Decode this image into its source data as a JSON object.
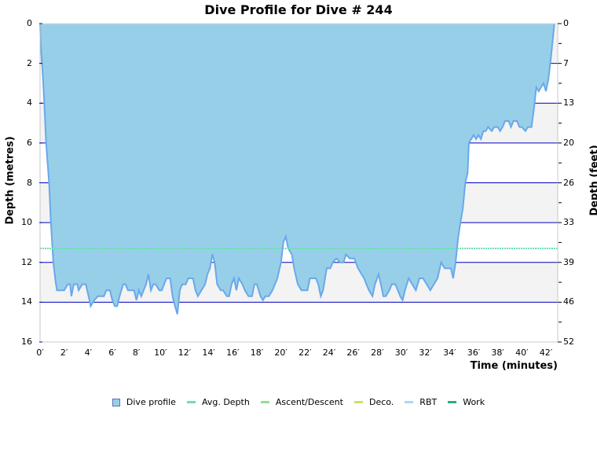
{
  "title": "Dive Profile for Dive # 244",
  "chart_data": {
    "type": "area",
    "title": "Dive Profile for Dive # 244",
    "xlabel": "Time (minutes)",
    "ylabel": "Depth (metres)",
    "ylabel_right": "Depth (feet)",
    "xlim": [
      0,
      43
    ],
    "ylim": [
      0,
      16
    ],
    "y_inverted": true,
    "x_ticks": [
      "0′",
      "2′",
      "4′",
      "6′",
      "8′",
      "10′",
      "12′",
      "14′",
      "16′",
      "18′",
      "20′",
      "22′",
      "24′",
      "26′",
      "28′",
      "30′",
      "32′",
      "34′",
      "36′",
      "38′",
      "40′",
      "42′"
    ],
    "y_ticks_left": [
      "0",
      "2",
      "4",
      "6",
      "8",
      "10",
      "12",
      "14",
      "16"
    ],
    "y_ticks_right": [
      "0",
      "7",
      "13",
      "20",
      "26",
      "33",
      "39",
      "46",
      "52"
    ],
    "grid": true,
    "legend_position": "bottom",
    "series": [
      {
        "name": "Dive profile",
        "color": "#97cfe9",
        "line_color": "#6aa8ea",
        "points": [
          [
            0,
            0
          ],
          [
            0.05,
            1.0
          ],
          [
            0.25,
            2.8
          ],
          [
            0.35,
            4.0
          ],
          [
            0.5,
            6.0
          ],
          [
            0.75,
            8.0
          ],
          [
            0.9,
            10.0
          ],
          [
            1.1,
            12.0
          ],
          [
            1.3,
            13.0
          ],
          [
            1.4,
            13.4
          ],
          [
            2.0,
            13.4
          ],
          [
            2.3,
            13.1
          ],
          [
            2.5,
            13.1
          ],
          [
            2.6,
            13.7
          ],
          [
            2.8,
            13.1
          ],
          [
            3.1,
            13.1
          ],
          [
            3.2,
            13.4
          ],
          [
            3.5,
            13.1
          ],
          [
            3.8,
            13.1
          ],
          [
            4.1,
            13.9
          ],
          [
            4.2,
            14.2
          ],
          [
            4.5,
            13.9
          ],
          [
            4.8,
            13.7
          ],
          [
            5.3,
            13.7
          ],
          [
            5.5,
            13.4
          ],
          [
            5.8,
            13.4
          ],
          [
            6.0,
            13.9
          ],
          [
            6.2,
            14.2
          ],
          [
            6.4,
            14.2
          ],
          [
            6.6,
            13.7
          ],
          [
            6.9,
            13.1
          ],
          [
            7.1,
            13.1
          ],
          [
            7.3,
            13.4
          ],
          [
            7.8,
            13.4
          ],
          [
            8.0,
            13.9
          ],
          [
            8.2,
            13.4
          ],
          [
            8.4,
            13.7
          ],
          [
            8.6,
            13.4
          ],
          [
            8.8,
            13.1
          ],
          [
            9.0,
            12.6
          ],
          [
            9.2,
            13.4
          ],
          [
            9.4,
            13.1
          ],
          [
            9.6,
            13.1
          ],
          [
            9.9,
            13.4
          ],
          [
            10.1,
            13.4
          ],
          [
            10.3,
            13.1
          ],
          [
            10.5,
            12.8
          ],
          [
            10.8,
            12.8
          ],
          [
            11.0,
            13.7
          ],
          [
            11.2,
            14.2
          ],
          [
            11.4,
            14.6
          ],
          [
            11.6,
            13.4
          ],
          [
            11.8,
            13.1
          ],
          [
            12.1,
            13.1
          ],
          [
            12.3,
            12.8
          ],
          [
            12.7,
            12.8
          ],
          [
            12.9,
            13.4
          ],
          [
            13.1,
            13.7
          ],
          [
            13.4,
            13.4
          ],
          [
            13.7,
            13.1
          ],
          [
            13.9,
            12.6
          ],
          [
            14.1,
            12.3
          ],
          [
            14.3,
            11.6
          ],
          [
            14.5,
            12.0
          ],
          [
            14.7,
            13.1
          ],
          [
            15.0,
            13.4
          ],
          [
            15.2,
            13.4
          ],
          [
            15.5,
            13.7
          ],
          [
            15.7,
            13.7
          ],
          [
            15.9,
            13.1
          ],
          [
            16.1,
            12.8
          ],
          [
            16.3,
            13.4
          ],
          [
            16.5,
            12.8
          ],
          [
            16.8,
            13.1
          ],
          [
            17.0,
            13.4
          ],
          [
            17.3,
            13.7
          ],
          [
            17.6,
            13.7
          ],
          [
            17.8,
            13.1
          ],
          [
            18.0,
            13.1
          ],
          [
            18.3,
            13.7
          ],
          [
            18.5,
            13.9
          ],
          [
            18.7,
            13.7
          ],
          [
            19.0,
            13.7
          ],
          [
            19.3,
            13.4
          ],
          [
            19.7,
            12.8
          ],
          [
            20.0,
            12.0
          ],
          [
            20.2,
            11.0
          ],
          [
            20.4,
            10.7
          ],
          [
            20.6,
            11.3
          ],
          [
            20.9,
            11.6
          ],
          [
            21.1,
            12.3
          ],
          [
            21.4,
            13.1
          ],
          [
            21.7,
            13.4
          ],
          [
            22.2,
            13.4
          ],
          [
            22.4,
            12.8
          ],
          [
            22.9,
            12.8
          ],
          [
            23.1,
            13.1
          ],
          [
            23.3,
            13.7
          ],
          [
            23.5,
            13.4
          ],
          [
            23.8,
            12.3
          ],
          [
            24.1,
            12.3
          ],
          [
            24.3,
            12.0
          ],
          [
            24.6,
            11.8
          ],
          [
            24.9,
            12.0
          ],
          [
            25.2,
            12.0
          ],
          [
            25.4,
            11.6
          ],
          [
            25.7,
            11.8
          ],
          [
            26.1,
            11.8
          ],
          [
            26.4,
            12.3
          ],
          [
            26.7,
            12.6
          ],
          [
            26.9,
            12.8
          ],
          [
            27.1,
            13.1
          ],
          [
            27.3,
            13.4
          ],
          [
            27.6,
            13.7
          ],
          [
            27.8,
            13.1
          ],
          [
            28.1,
            12.6
          ],
          [
            28.3,
            13.1
          ],
          [
            28.5,
            13.7
          ],
          [
            28.7,
            13.7
          ],
          [
            29.0,
            13.4
          ],
          [
            29.2,
            13.1
          ],
          [
            29.5,
            13.1
          ],
          [
            29.7,
            13.4
          ],
          [
            29.9,
            13.7
          ],
          [
            30.1,
            13.9
          ],
          [
            30.3,
            13.4
          ],
          [
            30.6,
            12.8
          ],
          [
            30.9,
            13.1
          ],
          [
            31.2,
            13.4
          ],
          [
            31.5,
            12.8
          ],
          [
            31.8,
            12.8
          ],
          [
            32.1,
            13.1
          ],
          [
            32.4,
            13.4
          ],
          [
            32.7,
            13.1
          ],
          [
            33.0,
            12.8
          ],
          [
            33.3,
            12.0
          ],
          [
            33.6,
            12.3
          ],
          [
            34.1,
            12.3
          ],
          [
            34.3,
            12.8
          ],
          [
            34.5,
            12.0
          ],
          [
            34.7,
            10.8
          ],
          [
            34.9,
            10.0
          ],
          [
            35.1,
            9.3
          ],
          [
            35.3,
            8.0
          ],
          [
            35.5,
            7.5
          ],
          [
            35.6,
            6.0
          ],
          [
            35.8,
            5.8
          ],
          [
            36.0,
            5.6
          ],
          [
            36.2,
            5.8
          ],
          [
            36.4,
            5.6
          ],
          [
            36.6,
            5.8
          ],
          [
            36.8,
            5.4
          ],
          [
            37.0,
            5.4
          ],
          [
            37.2,
            5.2
          ],
          [
            37.5,
            5.4
          ],
          [
            37.7,
            5.2
          ],
          [
            38.0,
            5.2
          ],
          [
            38.2,
            5.4
          ],
          [
            38.4,
            5.2
          ],
          [
            38.6,
            4.9
          ],
          [
            38.9,
            4.9
          ],
          [
            39.1,
            5.2
          ],
          [
            39.3,
            4.9
          ],
          [
            39.6,
            4.9
          ],
          [
            39.8,
            5.2
          ],
          [
            40.0,
            5.2
          ],
          [
            40.3,
            5.4
          ],
          [
            40.5,
            5.2
          ],
          [
            40.8,
            5.2
          ],
          [
            41.0,
            4.3
          ],
          [
            41.2,
            3.2
          ],
          [
            41.4,
            3.4
          ],
          [
            41.6,
            3.2
          ],
          [
            41.8,
            3.0
          ],
          [
            42.0,
            3.4
          ],
          [
            42.2,
            2.8
          ],
          [
            42.4,
            1.8
          ],
          [
            42.6,
            0.6
          ],
          [
            42.7,
            0
          ]
        ]
      },
      {
        "name": "Avg. Depth",
        "color": "#6edfb0",
        "depth": 11.3
      },
      {
        "name": "Ascent/Descent",
        "color": "#8ee08a"
      },
      {
        "name": "Deco.",
        "color": "#d4dc6a"
      },
      {
        "name": "RBT",
        "color": "#a6dcf4"
      },
      {
        "name": "Work",
        "color": "#2faa7c"
      }
    ]
  },
  "legend": [
    {
      "label": "Dive profile",
      "color": "#97cfe9",
      "kind": "box"
    },
    {
      "label": "Avg. Depth",
      "color": "#6edfb0",
      "kind": "line"
    },
    {
      "label": "Ascent/Descent",
      "color": "#8ee08a",
      "kind": "line"
    },
    {
      "label": "Deco.",
      "color": "#d4dc6a",
      "kind": "line"
    },
    {
      "label": "RBT",
      "color": "#a6dcf4",
      "kind": "line"
    },
    {
      "label": "Work",
      "color": "#2faa7c",
      "kind": "line"
    }
  ],
  "colors": {
    "band_gray": "#f3f3f3",
    "grid_line": "#0000c0",
    "axis": "#c8c8c8"
  }
}
